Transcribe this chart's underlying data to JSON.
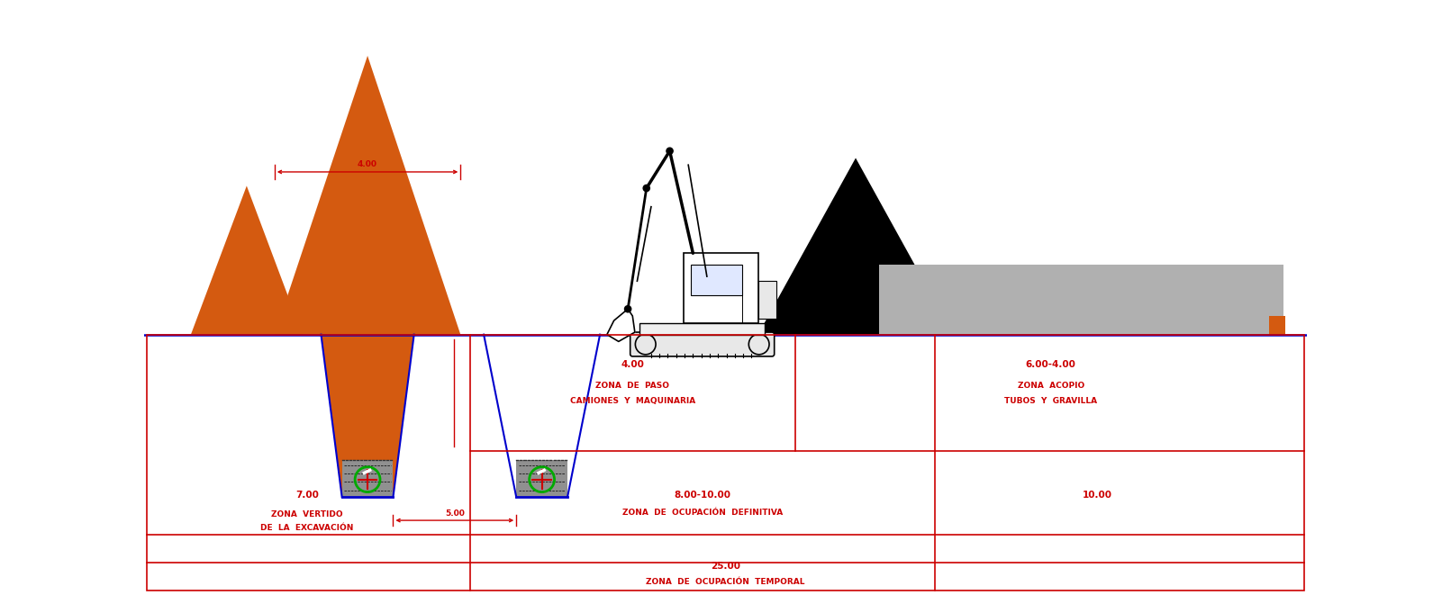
{
  "bg_color": "#ffffff",
  "red": "#cc0000",
  "blue": "#0000cc",
  "orange": "#d45a10",
  "black": "#000000",
  "gray": "#b0b0b0",
  "gravel": "#909090",
  "green_pipe": "#00aa00",
  "fig_width": 16.11,
  "fig_height": 6.71,
  "dpi": 100,
  "labels": {
    "dim_4": "4.00",
    "dim_5": "5.00",
    "z1_val": "7.00",
    "z1_line1": "ZONA  VERTIDO",
    "z1_line2": "DE  LA  EXCAVACIÓN",
    "z2_val": "8.00-10.00",
    "z2_line1": "ZONA  DE  OCUPACIÓN  DEFINITIVA",
    "z3_val": "4.00",
    "z3_line1": "ZONA  DE  PASO",
    "z3_line2": "CAMIONES  Y  MAQUINARIA",
    "z4_val": "6.00-4.00",
    "z4_line1": "ZONA  ACOPIO",
    "z4_line2": "TUBOS  Y  GRAVILLA",
    "z5_val": "25.00",
    "z5_line1": "ZONA  DE  OCUPACIÓN  TEMPORAL",
    "z10_val": "10.00"
  }
}
